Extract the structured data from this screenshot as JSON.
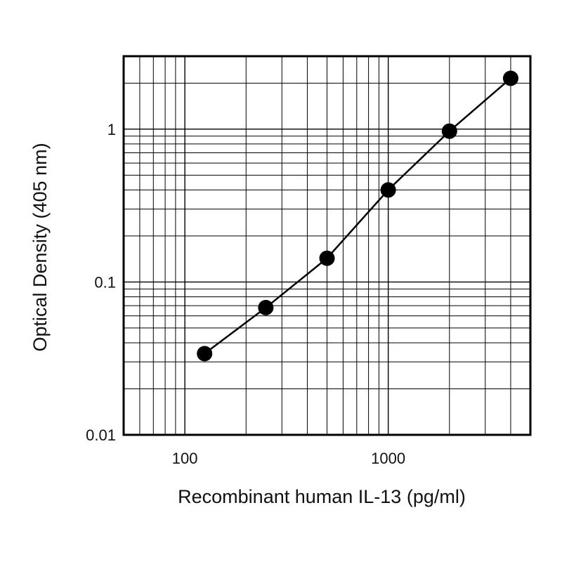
{
  "chart_data": {
    "type": "line",
    "title": "",
    "xlabel": "Recombinant human IL-13 (pg/ml)",
    "ylabel": "Optical Density (405 nm)",
    "x_scale": "log",
    "y_scale": "log",
    "xlim": [
      50,
      5000
    ],
    "ylim": [
      0.01,
      3
    ],
    "x_ticks": [
      {
        "value": 100,
        "label": "100"
      },
      {
        "value": 1000,
        "label": "1000"
      }
    ],
    "y_ticks": [
      {
        "value": 0.01,
        "label": "0.01"
      },
      {
        "value": 0.1,
        "label": "0.1"
      },
      {
        "value": 1,
        "label": "1"
      }
    ],
    "grid": true,
    "series": [
      {
        "x": [
          125,
          250,
          500,
          1000,
          2000,
          4000
        ],
        "y": [
          0.034,
          0.068,
          0.143,
          0.4,
          0.97,
          2.15
        ],
        "marker": "circle",
        "color": "#000000"
      }
    ]
  }
}
